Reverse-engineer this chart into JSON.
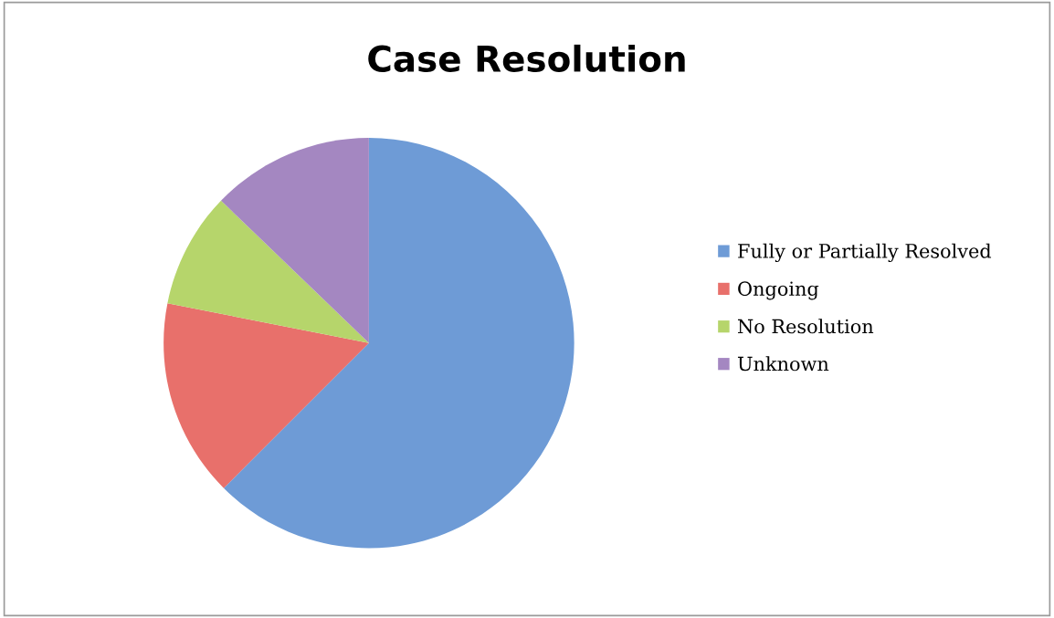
{
  "chart_data": {
    "type": "pie",
    "title": "Case Resolution",
    "categories": [
      "Fully or Partially Resolved",
      "Ongoing",
      "No Resolution",
      "Unknown"
    ],
    "values": [
      62.5,
      15.6,
      9.1,
      12.8
    ],
    "colors": [
      "#6e9bd6",
      "#e8706b",
      "#b6d56b",
      "#a487c1"
    ],
    "legend": "right"
  }
}
